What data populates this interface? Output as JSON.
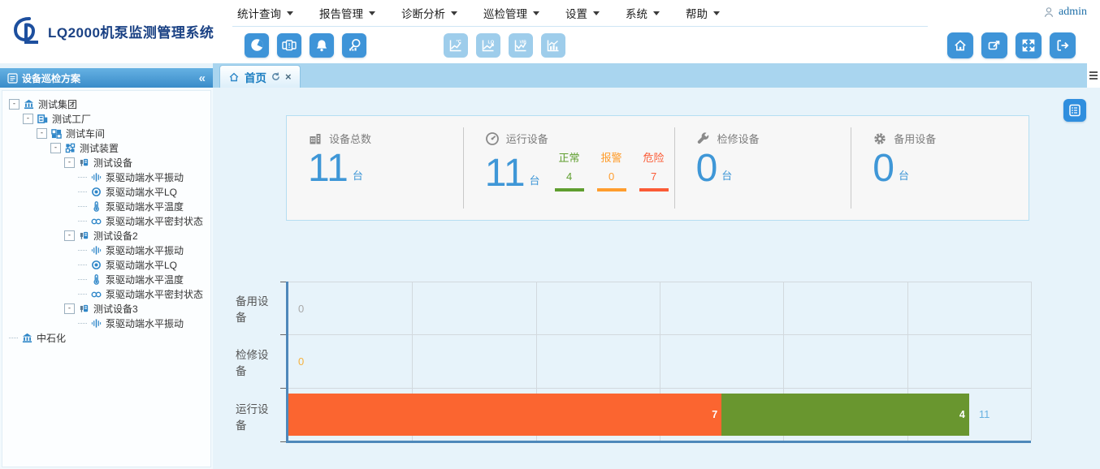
{
  "app": {
    "title": "LQ2000机泵监测管理系统",
    "user": "admin"
  },
  "nav": {
    "items": [
      {
        "label": "统计查询"
      },
      {
        "label": "报告管理"
      },
      {
        "label": "诊断分析"
      },
      {
        "label": "巡检管理"
      },
      {
        "label": "设置"
      },
      {
        "label": "系统"
      },
      {
        "label": "帮助"
      }
    ]
  },
  "toolbar": {
    "left_icons": [
      "pie-chart",
      "alarm-windows",
      "bell",
      "search-statistics"
    ],
    "disabled_icons": [
      "trend-temperature",
      "trend-lq",
      "trend-vibration",
      "trend-histogram"
    ],
    "right_icons": [
      "home",
      "external-window",
      "fullscreen",
      "logout"
    ]
  },
  "sidebar": {
    "title": "设备巡检方案",
    "collapse_glyph": "«",
    "tree": [
      {
        "label": "测试集团",
        "icon": "org",
        "expanded": true,
        "children": [
          {
            "label": "测试工厂",
            "icon": "factory",
            "expanded": true,
            "children": [
              {
                "label": "测试车间",
                "icon": "workshop",
                "expanded": true,
                "children": [
                  {
                    "label": "测试装置",
                    "icon": "unit",
                    "expanded": true,
                    "children": [
                      {
                        "label": "测试设备",
                        "icon": "device",
                        "expanded": true,
                        "children": [
                          {
                            "label": "泵驱动端水平振动",
                            "icon": "vibration"
                          },
                          {
                            "label": "泵驱动端水平LQ",
                            "icon": "lq"
                          },
                          {
                            "label": "泵驱动端水平温度",
                            "icon": "temperature"
                          },
                          {
                            "label": "泵驱动端水平密封状态",
                            "icon": "seal"
                          }
                        ]
                      },
                      {
                        "label": "测试设备2",
                        "icon": "device",
                        "expanded": true,
                        "children": [
                          {
                            "label": "泵驱动端水平振动",
                            "icon": "vibration"
                          },
                          {
                            "label": "泵驱动端水平LQ",
                            "icon": "lq"
                          },
                          {
                            "label": "泵驱动端水平温度",
                            "icon": "temperature"
                          },
                          {
                            "label": "泵驱动端水平密封状态",
                            "icon": "seal"
                          }
                        ]
                      },
                      {
                        "label": "测试设备3",
                        "icon": "device",
                        "expanded": true,
                        "children": [
                          {
                            "label": "泵驱动端水平振动",
                            "icon": "vibration"
                          }
                        ]
                      }
                    ]
                  }
                ]
              }
            ]
          }
        ]
      },
      {
        "label": "中石化",
        "icon": "org",
        "expanded": false,
        "children": []
      }
    ]
  },
  "tabs": [
    {
      "label": "首页"
    }
  ],
  "stats": {
    "cards": [
      {
        "icon": "building-icon",
        "label": "设备总数",
        "value": "11",
        "unit": "台"
      },
      {
        "icon": "gauge-icon",
        "label": "运行设备",
        "value": "11",
        "unit": "台",
        "statuses": [
          {
            "label": "正常",
            "value": "4",
            "color": "#5f9e2f"
          },
          {
            "label": "报警",
            "value": "0",
            "color": "#ff9d2e"
          },
          {
            "label": "危险",
            "value": "7",
            "color": "#fb5b36"
          }
        ]
      },
      {
        "icon": "wrench-icon",
        "label": "检修设备",
        "value": "0",
        "unit": "台"
      },
      {
        "icon": "gear-icon",
        "label": "备用设备",
        "value": "0",
        "unit": "台"
      }
    ]
  },
  "chart_data": {
    "type": "bar",
    "orientation": "horizontal",
    "categories": [
      "备用设备",
      "检修设备",
      "运行设备"
    ],
    "series": [
      {
        "name": "危险",
        "color": "#fb6530",
        "values": [
          0,
          0,
          7
        ]
      },
      {
        "name": "正常",
        "color": "#69962f",
        "values": [
          0,
          0,
          4
        ]
      }
    ],
    "totals": [
      0,
      0,
      11
    ],
    "total_label_color": "#68b1e0",
    "zero_label_colors": [
      "#a9a9a9",
      "#f5b13d",
      "#a9a9a9"
    ],
    "xlim": [
      0,
      12
    ],
    "grid_step": 2,
    "grid": true,
    "legend": "none",
    "title": "",
    "xlabel": "",
    "ylabel": ""
  }
}
